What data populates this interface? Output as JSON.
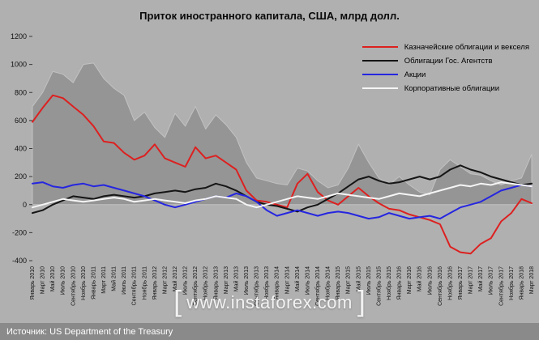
{
  "watermark": {
    "left_bracket": "[",
    "text": "www.instaforex.com",
    "right_bracket": "]"
  },
  "source": {
    "text": "Источник: US Department of the Treasury"
  },
  "colors": {
    "page_background": "#b0b0b0",
    "area_fill": "#959595",
    "area_edge": "#c2c2c2",
    "source_bar_background": "#8a8a8a",
    "axis_text": "#111111"
  },
  "chart_data": {
    "type": "line",
    "title": "Приток иностранного капитала, США, млрд долл.",
    "legend_position": "top-right",
    "grid": false,
    "ylim": [
      -400,
      1200
    ],
    "yticks": [
      1200,
      1000,
      800,
      600,
      400,
      200,
      0,
      -200,
      -400
    ],
    "categories": [
      "Январь 2010",
      "Март 2010",
      "Май 2010",
      "Июль 2010",
      "Сентябрь 2010",
      "Ноябрь 2010",
      "Январь 2011",
      "Март 2011",
      "Май 2011",
      "Июль 2011",
      "Сентябрь 2011",
      "Ноябрь 2011",
      "Январь 2012",
      "Март 2012",
      "Май 2012",
      "Июль 2012",
      "Сентябрь 2012",
      "Ноябрь 2012",
      "Январь 2013",
      "Март 2013",
      "Май 2013",
      "Июль 2013",
      "Сентябрь 2013",
      "Ноябрь 2013",
      "Январь 2014",
      "Март 2014",
      "Май 2014",
      "Июль 2014",
      "Сентябрь 2014",
      "Ноябрь 2014",
      "Январь 2015",
      "Март 2015",
      "Май 2015",
      "Июль 2015",
      "Сентябрь 2015",
      "Ноябрь 2015",
      "Январь 2016",
      "Март 2016",
      "Май 2016",
      "Июль 2016",
      "Сентябрь 2016",
      "Ноябрь 2016",
      "Январь 2017",
      "Март 2017",
      "Май 2017",
      "Июль 2017",
      "Сентябрь 2017",
      "Ноябрь 2017",
      "Январь 2018",
      "Март 2018"
    ],
    "background_area": {
      "name": "total-inflow-area",
      "color": "#959595",
      "edge_color": "#c2c2c2",
      "baseline": 0,
      "values": [
        700,
        800,
        950,
        930,
        870,
        1000,
        1010,
        900,
        830,
        780,
        600,
        660,
        550,
        480,
        650,
        560,
        700,
        540,
        640,
        570,
        480,
        300,
        190,
        170,
        150,
        140,
        260,
        240,
        170,
        120,
        140,
        260,
        430,
        300,
        190,
        140,
        200,
        140,
        90,
        70,
        250,
        320,
        270,
        220,
        210,
        170,
        140,
        170,
        190,
        360
      ]
    },
    "series": [
      {
        "name": "Казначейские облигации и векселя",
        "color": "#dd2020",
        "values": [
          590,
          690,
          780,
          760,
          700,
          640,
          560,
          450,
          440,
          370,
          320,
          350,
          430,
          330,
          300,
          270,
          410,
          330,
          350,
          300,
          250,
          100,
          30,
          20,
          0,
          -20,
          150,
          220,
          90,
          30,
          0,
          60,
          120,
          60,
          10,
          -30,
          -40,
          -70,
          -90,
          -110,
          -140,
          -300,
          -340,
          -350,
          -280,
          -240,
          -120,
          -60,
          40,
          10
        ]
      },
      {
        "name": "Облигации Гос. Агентств",
        "color": "#151515",
        "values": [
          -60,
          -40,
          0,
          30,
          60,
          50,
          40,
          60,
          70,
          60,
          50,
          60,
          80,
          90,
          100,
          90,
          110,
          120,
          150,
          130,
          100,
          60,
          20,
          0,
          -10,
          -30,
          -50,
          -20,
          0,
          40,
          80,
          130,
          180,
          200,
          170,
          150,
          160,
          180,
          200,
          180,
          200,
          250,
          280,
          250,
          230,
          200,
          180,
          160,
          140,
          150
        ]
      },
      {
        "name": "Акции",
        "color": "#2626e0",
        "values": [
          150,
          160,
          130,
          120,
          140,
          150,
          130,
          140,
          120,
          100,
          80,
          60,
          30,
          0,
          -20,
          0,
          20,
          40,
          60,
          50,
          80,
          60,
          20,
          -40,
          -80,
          -60,
          -40,
          -60,
          -80,
          -60,
          -50,
          -60,
          -80,
          -100,
          -90,
          -60,
          -80,
          -100,
          -90,
          -80,
          -100,
          -60,
          -20,
          0,
          20,
          60,
          100,
          120,
          140,
          130
        ]
      },
      {
        "name": "Корпоративные облигации",
        "color": "#f5f5f5",
        "values": [
          -20,
          0,
          20,
          40,
          30,
          20,
          30,
          40,
          50,
          40,
          20,
          30,
          40,
          30,
          20,
          10,
          30,
          40,
          60,
          50,
          40,
          0,
          -20,
          0,
          20,
          40,
          60,
          50,
          40,
          60,
          80,
          70,
          60,
          50,
          40,
          60,
          80,
          70,
          60,
          80,
          100,
          120,
          140,
          130,
          150,
          140,
          160,
          150,
          140,
          130
        ]
      }
    ]
  }
}
